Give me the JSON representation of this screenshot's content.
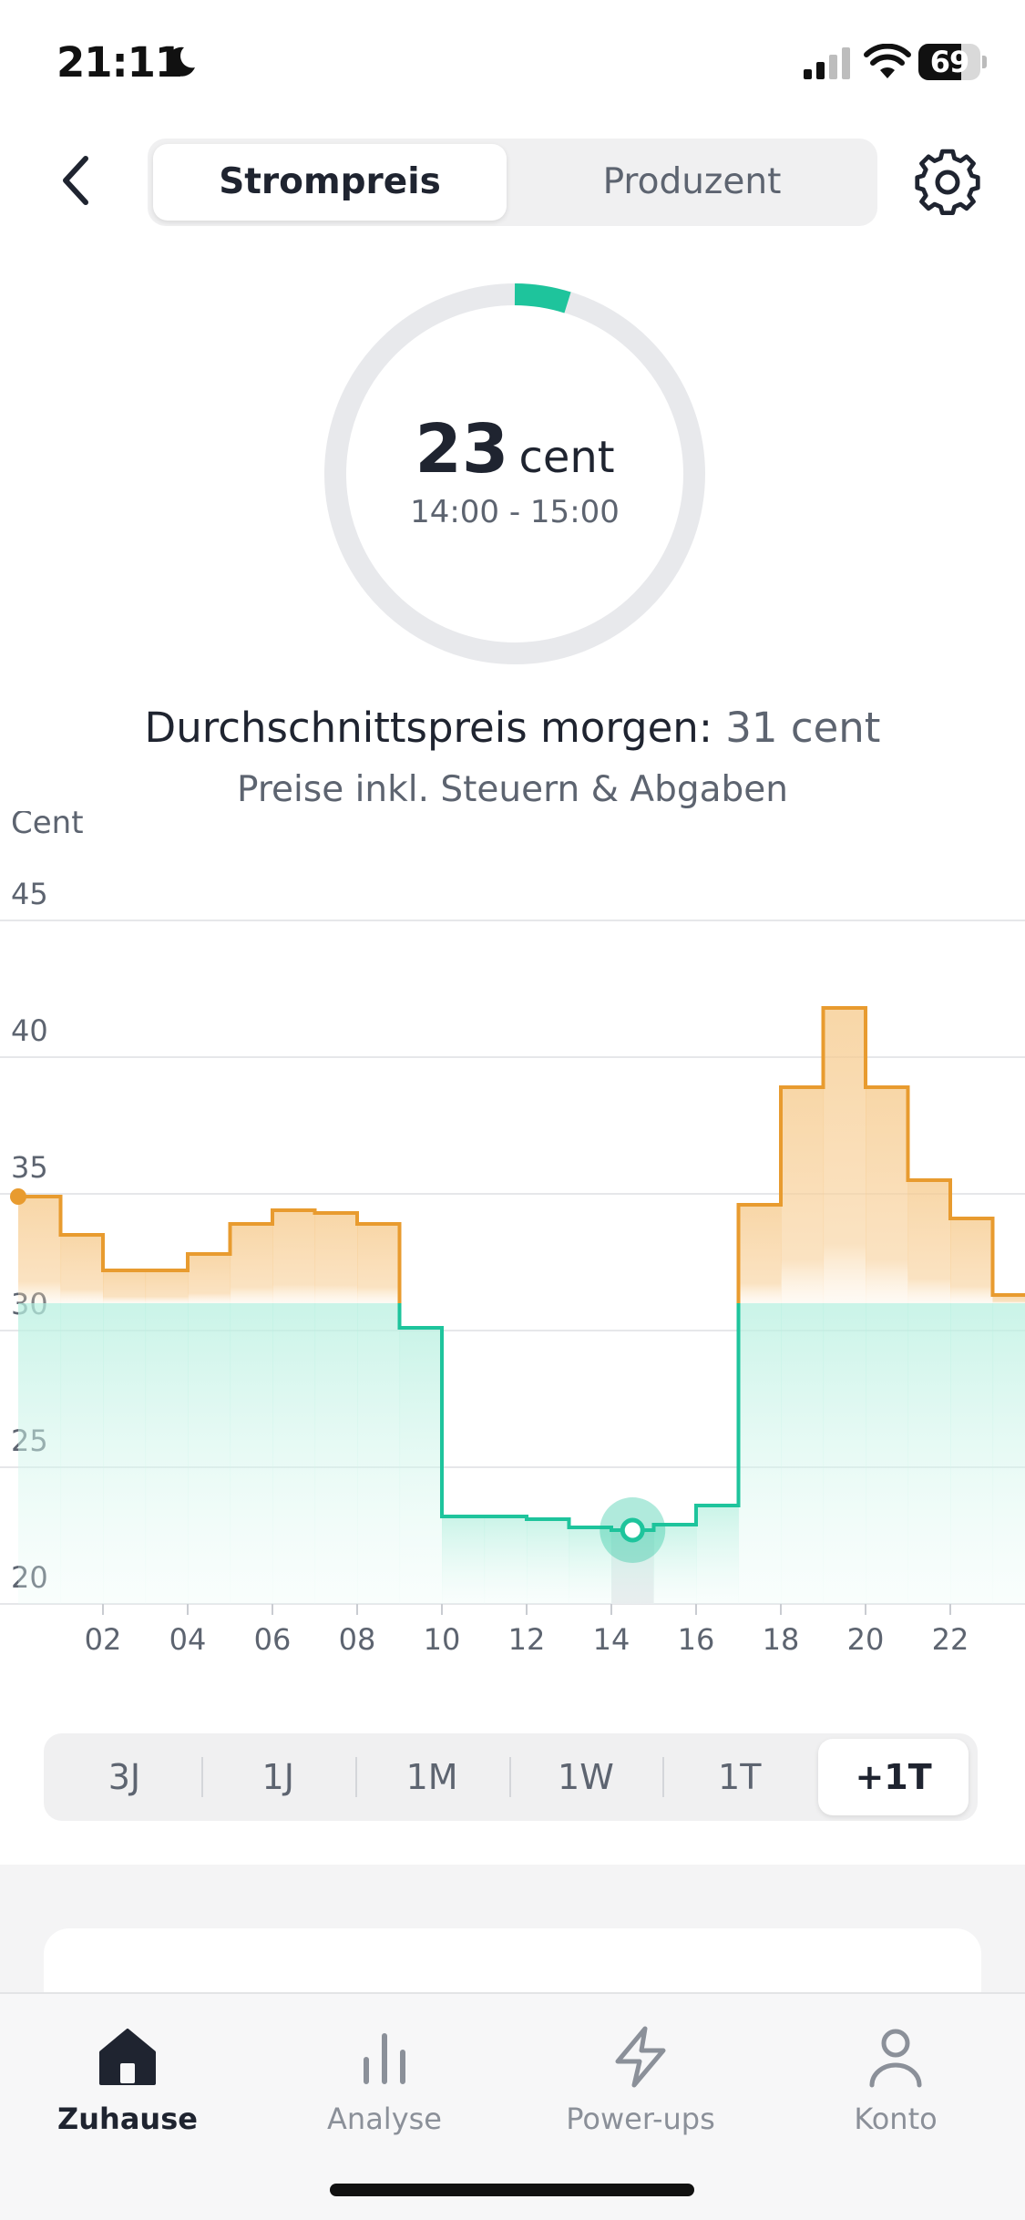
{
  "status_bar": {
    "time": "21:11",
    "battery": "69",
    "battery_level": 0.69,
    "icons": [
      "moon-icon",
      "signal-icon",
      "wifi-icon",
      "battery-icon"
    ]
  },
  "header": {
    "tabs": [
      {
        "label": "Strompreis",
        "active": true
      },
      {
        "label": "Produzent",
        "active": false
      }
    ],
    "icons": [
      "chevron-left-icon",
      "gear-icon"
    ]
  },
  "current_price": {
    "value": "23",
    "unit": "cent",
    "time_range": "14:00 - 15:00"
  },
  "summary": {
    "avg_label": "Durchschnittspreis morgen:",
    "avg_value": "31 cent",
    "note": "Preise inkl. Steuern & Abgaben"
  },
  "chart_data": {
    "type": "line",
    "step": true,
    "ylabel": "Cent",
    "ylim": [
      20,
      45
    ],
    "y_ticks": [
      "45",
      "40",
      "35",
      "30",
      "25",
      "20"
    ],
    "x_ticks": [
      "02",
      "04",
      "06",
      "08",
      "10",
      "12",
      "14",
      "16",
      "18",
      "20",
      "22"
    ],
    "x": [
      0,
      1,
      2,
      3,
      4,
      5,
      6,
      7,
      8,
      9,
      10,
      11,
      12,
      13,
      14,
      15,
      16,
      17,
      18,
      19,
      20,
      21,
      22,
      23
    ],
    "values": [
      34.9,
      33.5,
      32.2,
      32.2,
      32.8,
      33.9,
      34.4,
      34.3,
      33.9,
      30.1,
      23.2,
      23.2,
      23.1,
      22.8,
      22.7,
      22.9,
      23.6,
      34.6,
      38.9,
      41.8,
      38.9,
      35.5,
      34.1,
      31.3
    ],
    "threshold": 31,
    "highlight_hour": 14,
    "colors": {
      "above": "#e89b2f",
      "below": "#1ec49c",
      "grid": "#e6e7ea",
      "highlight": "#e8e9ec"
    }
  },
  "range_selector": {
    "options": [
      "3J",
      "1J",
      "1M",
      "1W",
      "1T",
      "+1T"
    ],
    "active": "+1T"
  },
  "tab_bar": {
    "items": [
      {
        "label": "Zuhause",
        "icon": "home-icon",
        "active": true
      },
      {
        "label": "Analyse",
        "icon": "bar-chart-icon",
        "active": false
      },
      {
        "label": "Power-ups",
        "icon": "lightning-icon",
        "active": false
      },
      {
        "label": "Konto",
        "icon": "person-icon",
        "active": false
      }
    ]
  }
}
